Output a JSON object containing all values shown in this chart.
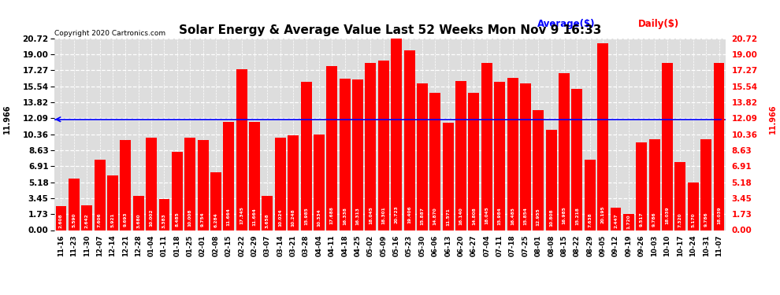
{
  "title": "Solar Energy & Average Value Last 52 Weeks Mon Nov 9 16:33",
  "copyright": "Copyright 2020 Cartronics.com",
  "legend_avg": "Average($)",
  "legend_daily": "Daily($)",
  "average_value": 11.966,
  "bar_color": "#FF0000",
  "average_line_color": "#0000FF",
  "background_color": "#FFFFFF",
  "categories": [
    "11-16",
    "11-23",
    "11-30",
    "12-07",
    "12-14",
    "12-21",
    "12-28",
    "01-04",
    "01-11",
    "01-18",
    "01-25",
    "02-01",
    "02-08",
    "02-15",
    "02-22",
    "02-29",
    "03-07",
    "03-14",
    "03-21",
    "03-28",
    "04-04",
    "04-11",
    "04-18",
    "04-25",
    "05-02",
    "05-09",
    "05-16",
    "05-23",
    "05-30",
    "06-06",
    "06-13",
    "06-20",
    "06-27",
    "07-04",
    "07-11",
    "07-18",
    "07-25",
    "08-01",
    "08-08",
    "08-15",
    "08-22",
    "08-29",
    "09-05",
    "09-12",
    "09-19",
    "09-26",
    "10-03",
    "10-10",
    "10-17",
    "10-24",
    "10-31",
    "11-07"
  ],
  "values": [
    2.608,
    5.59,
    2.642,
    7.606,
    5.921,
    9.693,
    3.68,
    10.002,
    3.383,
    8.485,
    10.008,
    9.754,
    6.284,
    11.664,
    17.345,
    11.664,
    3.658,
    10.024,
    10.248,
    15.985,
    10.334,
    17.688,
    16.338,
    16.313,
    18.045,
    18.301,
    20.723,
    19.406,
    15.887,
    14.87,
    11.571,
    16.14,
    14.808,
    18.045,
    15.984,
    16.485,
    15.854,
    12.955,
    10.808,
    16.985,
    15.218,
    7.638,
    20.195,
    2.447,
    1.72,
    9.517,
    9.786,
    18.039,
    7.32,
    5.17,
    9.786,
    18.039
  ],
  "ylim_max": 20.72,
  "yticks": [
    0.0,
    1.73,
    3.45,
    5.18,
    6.91,
    8.63,
    10.36,
    12.09,
    13.82,
    15.54,
    17.27,
    19.0,
    20.72
  ],
  "ytick_labels_left": [
    "0.00",
    "1.73",
    "3.45",
    "5.18",
    "6.91",
    "8.63",
    "10.36",
    "12.09",
    "13.82",
    "15.54",
    "17.27",
    "19.00",
    "20.72"
  ],
  "ytick_labels_right": [
    "0.00",
    "1.73",
    "3.45",
    "5.18",
    "6.91",
    "8.63",
    "10.36",
    "12.09",
    "13.82",
    "15.54",
    "17.27",
    "19.00",
    "20.72"
  ]
}
